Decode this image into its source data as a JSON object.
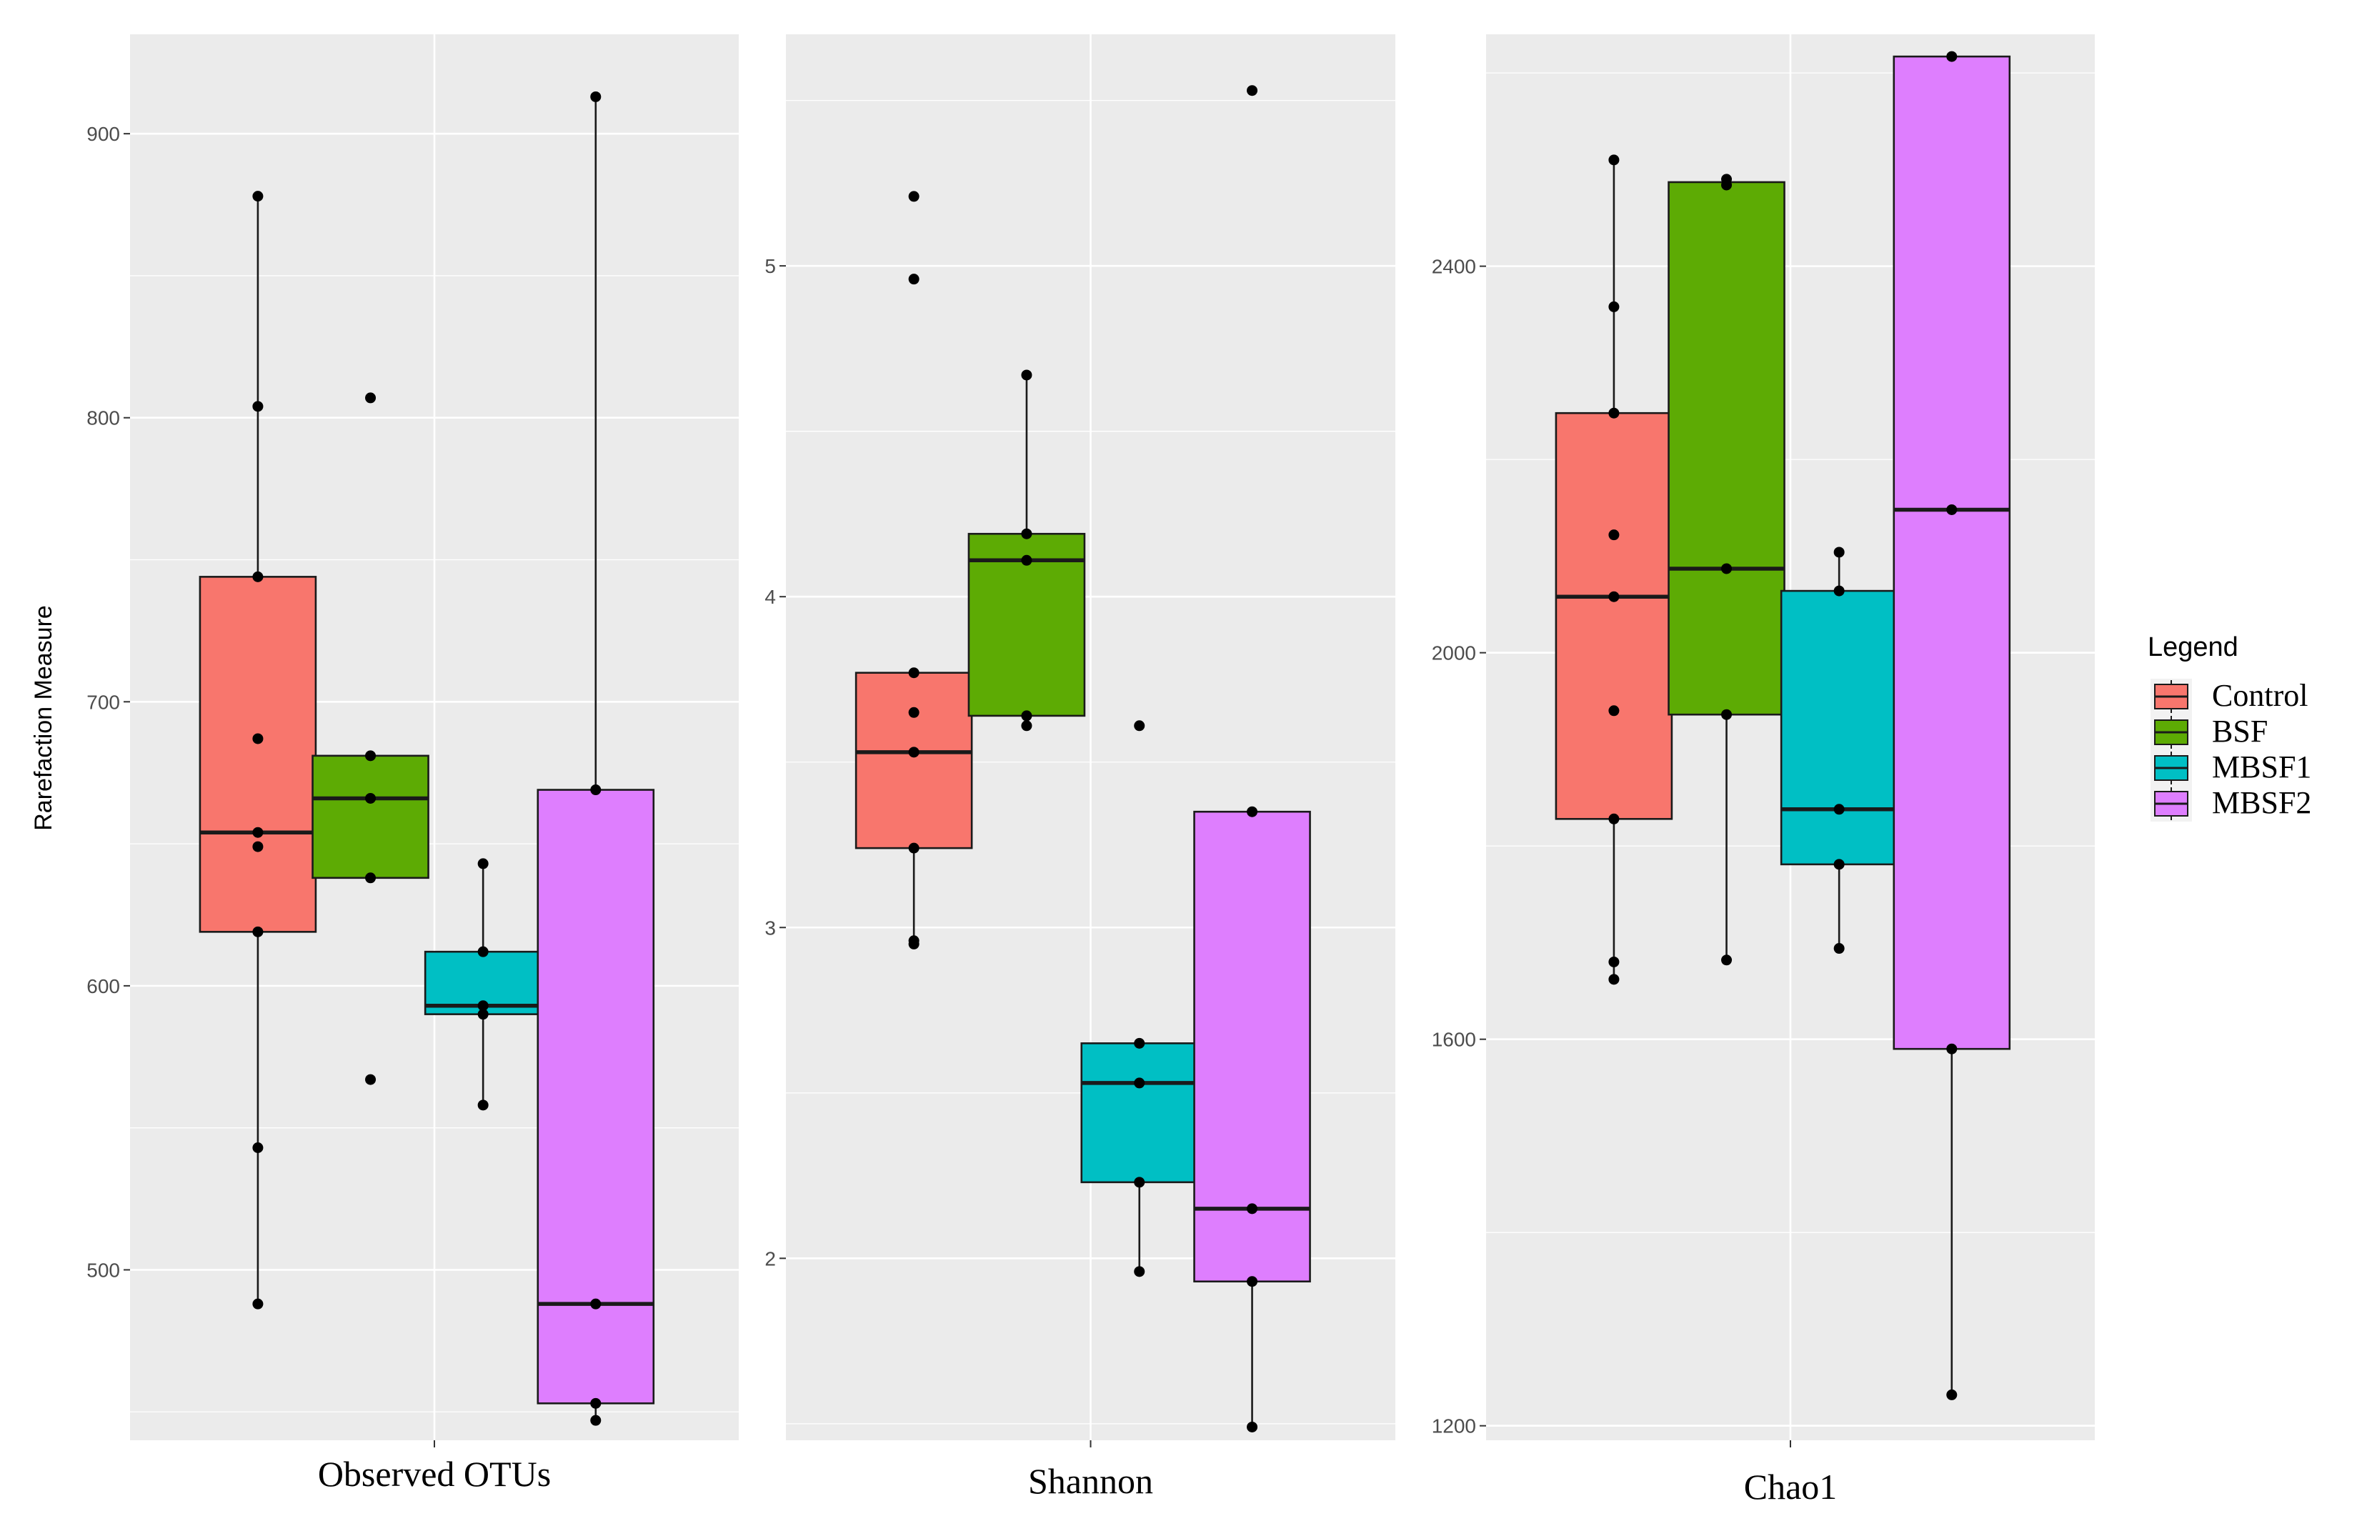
{
  "chart_data": {
    "type": "boxplot",
    "ylabel": "Rarefaction Measure",
    "legend": {
      "title": "Legend",
      "placement": "right",
      "entries": [
        {
          "name": "Control",
          "color": "#F8766D"
        },
        {
          "name": "BSF",
          "color": "#5DAB04"
        },
        {
          "name": "MBSF1",
          "color": "#00BFC4"
        },
        {
          "name": "MBSF2",
          "color": "#DE7EFE"
        }
      ]
    },
    "panels": [
      {
        "title": "Observed OTUs",
        "ylim": [
          440,
          935
        ],
        "yticks": [
          500,
          600,
          700,
          800,
          900
        ],
        "tick_labels": [
          "500",
          "600",
          "700",
          "800",
          "900"
        ],
        "groups": [
          {
            "name": "Control",
            "q1": 619,
            "median": 654,
            "q3": 744,
            "whisker_low": 488,
            "whisker_high": 878,
            "points": [
              878,
              804,
              744,
              687,
              654,
              649,
              619,
              543,
              488
            ]
          },
          {
            "name": "BSF",
            "q1": 638,
            "median": 666,
            "q3": 681,
            "whisker_low": 638,
            "whisker_high": 681,
            "points": [
              807,
              681,
              666,
              638,
              567
            ]
          },
          {
            "name": "MBSF1",
            "q1": 590,
            "median": 593,
            "q3": 612,
            "whisker_low": 558,
            "whisker_high": 643,
            "points": [
              643,
              612,
              593,
              590,
              558
            ]
          },
          {
            "name": "MBSF2",
            "q1": 453,
            "median": 488,
            "q3": 669,
            "whisker_low": 447,
            "whisker_high": 913,
            "points": [
              913,
              669,
              488,
              453,
              447
            ]
          }
        ]
      },
      {
        "title": "Shannon",
        "ylim": [
          1.45,
          5.7
        ],
        "yticks": [
          2,
          3,
          4,
          5
        ],
        "tick_labels": [
          "2",
          "3",
          "4",
          "5"
        ],
        "groups": [
          {
            "name": "Control",
            "q1": 3.24,
            "median": 3.53,
            "q3": 3.77,
            "whisker_low": 2.95,
            "whisker_high": 3.77,
            "points": [
              5.21,
              4.96,
              3.77,
              3.65,
              3.53,
              3.24,
              2.96,
              2.95
            ]
          },
          {
            "name": "BSF",
            "q1": 3.64,
            "median": 4.11,
            "q3": 4.19,
            "whisker_low": 3.61,
            "whisker_high": 4.67,
            "points": [
              4.67,
              4.19,
              4.11,
              3.64,
              3.61
            ]
          },
          {
            "name": "MBSF1",
            "q1": 2.23,
            "median": 2.53,
            "q3": 2.65,
            "whisker_low": 1.96,
            "whisker_high": 2.65,
            "points": [
              3.61,
              2.65,
              2.53,
              2.23,
              1.96
            ]
          },
          {
            "name": "MBSF2",
            "q1": 1.93,
            "median": 2.15,
            "q3": 3.35,
            "whisker_low": 1.49,
            "whisker_high": 3.35,
            "points": [
              5.53,
              3.35,
              2.15,
              1.93,
              1.49
            ]
          }
        ]
      },
      {
        "title": "Chao1",
        "ylim": [
          1185,
          2640
        ],
        "yticks": [
          1200,
          1600,
          2000,
          2400
        ],
        "tick_labels": [
          "1200",
          "1600",
          "2000",
          "2400"
        ],
        "groups": [
          {
            "name": "Control",
            "q1": 1828,
            "median": 2058,
            "q3": 2248,
            "whisker_low": 1662,
            "whisker_high": 2510,
            "points": [
              2510,
              2358,
              2248,
              2122,
              2058,
              1940,
              1828,
              1680,
              1662
            ]
          },
          {
            "name": "BSF",
            "q1": 1936,
            "median": 2087,
            "q3": 2487,
            "whisker_low": 1682,
            "whisker_high": 2487,
            "points": [
              2490,
              2484,
              2087,
              1936,
              1682
            ]
          },
          {
            "name": "MBSF1",
            "q1": 1781,
            "median": 1838,
            "q3": 2064,
            "whisker_low": 1694,
            "whisker_high": 2104,
            "points": [
              2104,
              2064,
              1838,
              1781,
              1694
            ]
          },
          {
            "name": "MBSF2",
            "q1": 1590,
            "median": 2148,
            "q3": 2617,
            "whisker_low": 1232,
            "whisker_high": 2617,
            "points": [
              2617,
              2148,
              1590,
              1232
            ]
          }
        ]
      }
    ]
  }
}
